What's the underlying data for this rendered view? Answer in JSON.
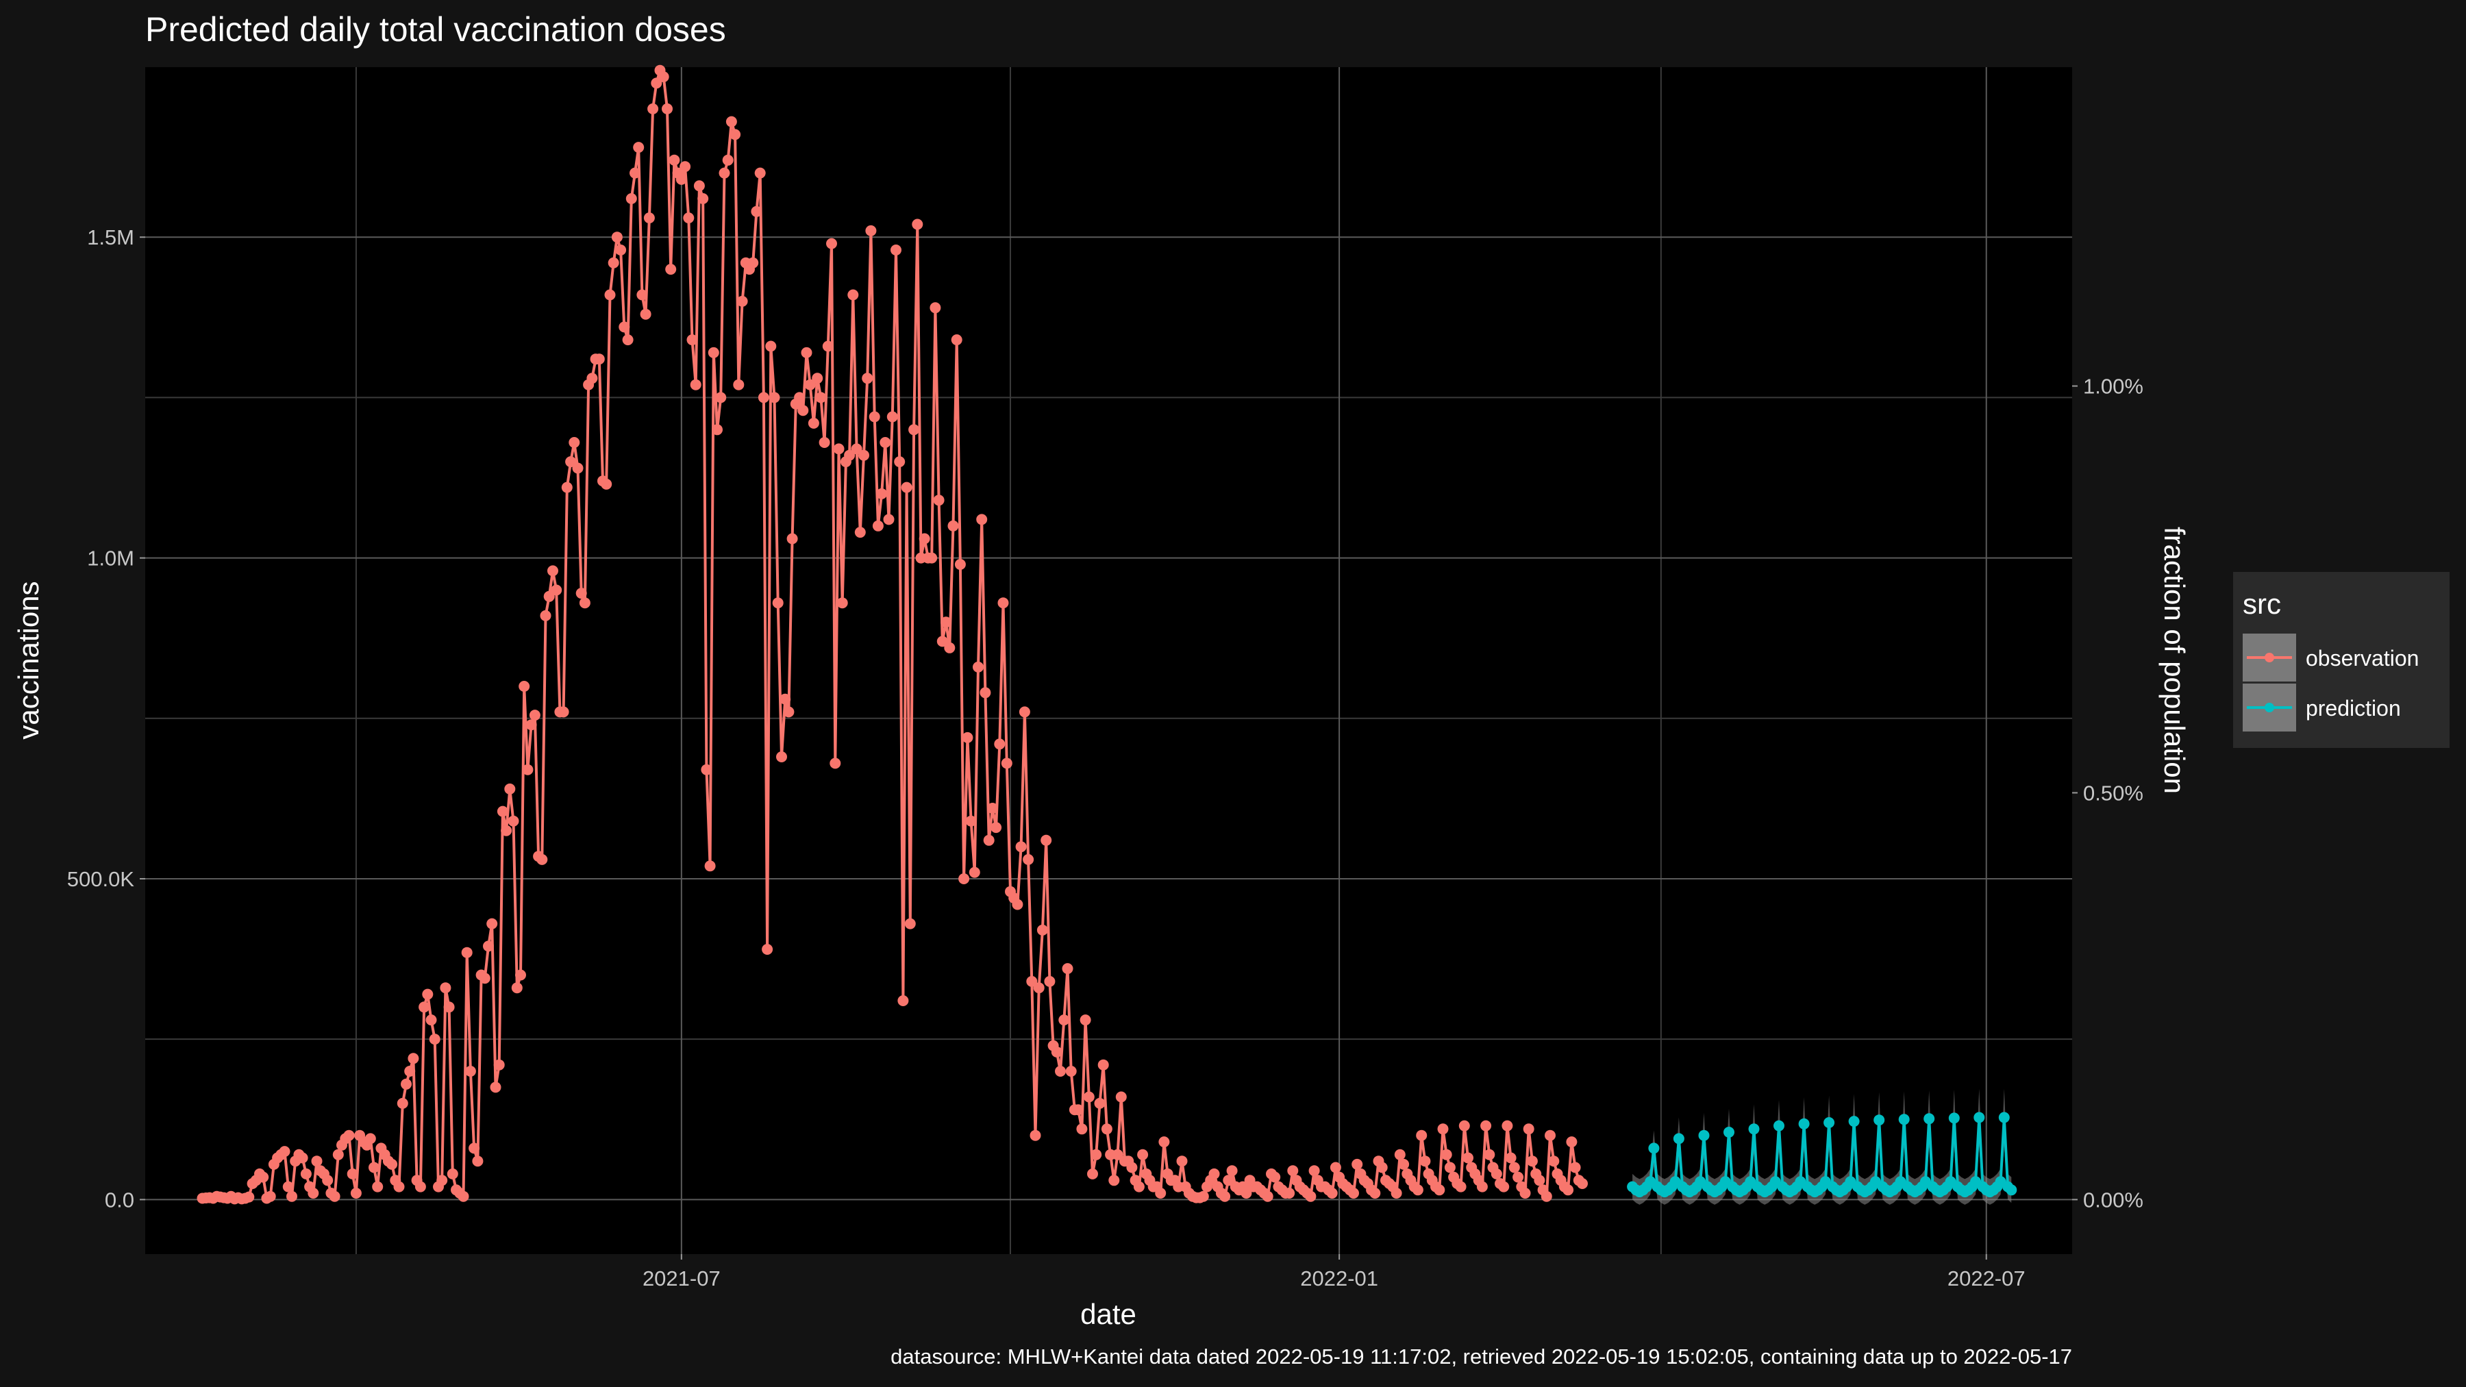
{
  "title": "Predicted daily total vaccination doses",
  "caption": "datasource: MHLW+Kantei data dated 2022-05-19 11:17:02, retrieved 2022-05-19 15:02:05, containing data up to 2022-05-17",
  "colors": {
    "background": "#131313",
    "panel": "#000000",
    "grid_major": "#5a5a5a",
    "grid_minor": "#3a3a3a",
    "observation": "#f8766d",
    "prediction": "#00bfc4",
    "ribbon": "#8a8a8a"
  },
  "chart_data": {
    "type": "line",
    "title": "Predicted daily total vaccination doses",
    "xlabel": "date",
    "ylabel": "vaccinations",
    "y2label": "fraction of population",
    "x_type": "date",
    "xlim": [
      "2021-02-01",
      "2022-07-25"
    ],
    "ylim": [
      -85000,
      1765000
    ],
    "x_ticks": [
      "2021-07-01",
      "2022-01-01",
      "2022-07-01"
    ],
    "x_tick_labels": [
      "2021-07",
      "2022-01",
      "2022-07"
    ],
    "y_ticks": [
      0,
      500000,
      1000000,
      1500000
    ],
    "y_tick_labels": [
      "0.0",
      "500.0K",
      "1.0M",
      "1.5M"
    ],
    "y2_ticks": [
      0,
      634000,
      1268000
    ],
    "y2_tick_labels": [
      "0.00%",
      "0.50%",
      "1.00%"
    ],
    "grid": true,
    "legend": {
      "title": "src",
      "position": "right",
      "entries": [
        "observation",
        "prediction"
      ]
    },
    "series": [
      {
        "name": "observation",
        "start": "2021-02-17",
        "unit": "daily doses",
        "values": [
          2000,
          2500,
          3000,
          2000,
          5000,
          4000,
          3000,
          2000,
          5000,
          1000,
          3000,
          1000,
          2000,
          4000,
          25000,
          30000,
          40000,
          35000,
          2000,
          5000,
          55000,
          65000,
          70000,
          75000,
          20000,
          5000,
          60000,
          70000,
          65000,
          40000,
          20000,
          10000,
          60000,
          45000,
          40000,
          30000,
          10000,
          5000,
          70000,
          85000,
          95000,
          100000,
          40000,
          10000,
          100000,
          90000,
          85000,
          95000,
          50000,
          20000,
          80000,
          70000,
          60000,
          55000,
          30000,
          20000,
          150000,
          180000,
          200000,
          220000,
          30000,
          20000,
          300000,
          320000,
          280000,
          250000,
          20000,
          30000,
          330000,
          300000,
          40000,
          15000,
          10000,
          5000,
          385000,
          200000,
          80000,
          60000,
          350000,
          345000,
          395000,
          430000,
          175000,
          210000,
          605000,
          575000,
          640000,
          590000,
          330000,
          350000,
          800000,
          670000,
          740000,
          755000,
          535000,
          530000,
          910000,
          940000,
          980000,
          950000,
          760000,
          760000,
          1110000,
          1150000,
          1180000,
          1140000,
          945000,
          930000,
          1270000,
          1280000,
          1310000,
          1310000,
          1120000,
          1115000,
          1410000,
          1460000,
          1500000,
          1480000,
          1360000,
          1340000,
          1560000,
          1600000,
          1640000,
          1410000,
          1380000,
          1530000,
          1700000,
          1740000,
          1760000,
          1750000,
          1700000,
          1450000,
          1620000,
          1600000,
          1590000,
          1610000,
          1530000,
          1340000,
          1270000,
          1580000,
          1560000,
          670000,
          520000,
          1320000,
          1200000,
          1250000,
          1600000,
          1620000,
          1680000,
          1660000,
          1270000,
          1400000,
          1460000,
          1450000,
          1460000,
          1540000,
          1600000,
          1250000,
          390000,
          1330000,
          1250000,
          930000,
          690000,
          780000,
          760000,
          1030000,
          1240000,
          1250000,
          1230000,
          1320000,
          1270000,
          1210000,
          1280000,
          1250000,
          1180000,
          1330000,
          1490000,
          680000,
          1170000,
          930000,
          1150000,
          1160000,
          1410000,
          1170000,
          1040000,
          1160000,
          1280000,
          1510000,
          1220000,
          1050000,
          1100000,
          1180000,
          1060000,
          1220000,
          1480000,
          1150000,
          310000,
          1110000,
          430000,
          1200000,
          1520000,
          1000000,
          1030000,
          1000000,
          1000000,
          1390000,
          1090000,
          870000,
          900000,
          860000,
          1050000,
          1340000,
          990000,
          500000,
          720000,
          590000,
          510000,
          830000,
          1060000,
          790000,
          560000,
          610000,
          580000,
          710000,
          930000,
          680000,
          480000,
          470000,
          460000,
          550000,
          760000,
          530000,
          340000,
          100000,
          330000,
          420000,
          560000,
          340000,
          240000,
          230000,
          200000,
          280000,
          360000,
          200000,
          140000,
          140000,
          110000,
          280000,
          160000,
          40000,
          70000,
          150000,
          210000,
          110000,
          70000,
          30000,
          70000,
          160000,
          60000,
          60000,
          50000,
          30000,
          20000,
          70000,
          40000,
          30000,
          20000,
          20000,
          10000,
          90000,
          40000,
          30000,
          30000,
          20000,
          60000,
          20000,
          10000,
          5000,
          3000,
          3000,
          5000,
          20000,
          30000,
          40000,
          20000,
          10000,
          5000,
          30000,
          45000,
          20000,
          15000,
          20000,
          10000,
          30000,
          20000,
          20000,
          15000,
          10000,
          5000,
          40000,
          35000,
          20000,
          15000,
          10000,
          10000,
          45000,
          30000,
          20000,
          15000,
          10000,
          5000,
          45000,
          30000,
          20000,
          20000,
          15000,
          10000,
          50000,
          35000,
          25000,
          20000,
          15000,
          10000,
          55000,
          40000,
          30000,
          25000,
          15000,
          10000,
          60000,
          50000,
          30000,
          25000,
          20000,
          10000,
          70000,
          55000,
          40000,
          30000,
          20000,
          15000,
          100000,
          60000,
          40000,
          30000,
          20000,
          15000,
          110000,
          70000,
          50000,
          35000,
          25000,
          20000,
          115000,
          65000,
          50000,
          40000,
          30000,
          20000,
          115000,
          70000,
          50000,
          40000,
          25000,
          20000,
          115000,
          65000,
          50000,
          35000,
          20000,
          10000,
          110000,
          60000,
          40000,
          30000,
          15000,
          5000,
          100000,
          60000,
          40000,
          30000,
          20000,
          15000,
          90000,
          50000,
          30000,
          25000
        ]
      },
      {
        "name": "prediction",
        "start": "2022-03-24",
        "step_days": 1,
        "weekly_pattern": [
          20000,
          15000,
          12000,
          15000,
          20000,
          28000,
          80000
        ],
        "peak_trend": [
          80000,
          95000,
          100000,
          105000,
          110000,
          115000,
          118000,
          120000,
          122000,
          124000,
          125000,
          126000,
          127000,
          128000,
          128000
        ],
        "end": "2022-07-08",
        "ribbon_halfwidth_fraction": 0.35
      }
    ]
  }
}
